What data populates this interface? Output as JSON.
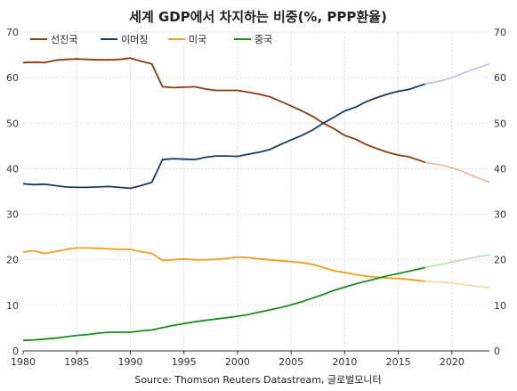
{
  "chart_data": {
    "type": "line",
    "title": "세계 GDP에서 차지하는 비중(%, PPP환율)",
    "source": "Source: Thomson Reuters Datastream, 글로벌모니터",
    "xlim": [
      1980,
      2023.5
    ],
    "ylim": [
      0,
      70
    ],
    "xticks": [
      1980,
      1985,
      1990,
      1995,
      2000,
      2005,
      2010,
      2015,
      2020
    ],
    "yticks": [
      0,
      10,
      20,
      30,
      40,
      50,
      60,
      70
    ],
    "grid": true,
    "legend_position": "top-left",
    "secondary_y_axis": true,
    "forecast_from": 2017.5,
    "series": [
      {
        "name": "선진국",
        "color": "#8b3a12",
        "forecast_color": "#e2b9a7",
        "points": [
          [
            1980,
            63.3
          ],
          [
            1981,
            63.4
          ],
          [
            1982,
            63.3
          ],
          [
            1983,
            63.8
          ],
          [
            1984,
            64.0
          ],
          [
            1985,
            64.1
          ],
          [
            1986,
            64.0
          ],
          [
            1987,
            63.9
          ],
          [
            1988,
            63.9
          ],
          [
            1989,
            64.0
          ],
          [
            1990,
            64.3
          ],
          [
            1991,
            63.6
          ],
          [
            1992,
            63.0
          ],
          [
            1993,
            58.0
          ],
          [
            1994,
            57.8
          ],
          [
            1995,
            57.9
          ],
          [
            1996,
            58.0
          ],
          [
            1997,
            57.5
          ],
          [
            1998,
            57.2
          ],
          [
            1999,
            57.2
          ],
          [
            2000,
            57.2
          ],
          [
            2001,
            56.8
          ],
          [
            2002,
            56.4
          ],
          [
            2003,
            55.8
          ],
          [
            2004,
            54.8
          ],
          [
            2005,
            53.8
          ],
          [
            2006,
            52.7
          ],
          [
            2007,
            51.5
          ],
          [
            2008,
            50.0
          ],
          [
            2009,
            48.8
          ],
          [
            2010,
            47.3
          ],
          [
            2011,
            46.5
          ],
          [
            2012,
            45.3
          ],
          [
            2013,
            44.4
          ],
          [
            2014,
            43.6
          ],
          [
            2015,
            43.0
          ],
          [
            2016,
            42.6
          ],
          [
            2017,
            41.8
          ],
          [
            2017.5,
            41.4
          ],
          [
            2019,
            40.8
          ],
          [
            2020,
            40.2
          ],
          [
            2021,
            39.4
          ],
          [
            2022,
            38.4
          ],
          [
            2023.5,
            37.0
          ]
        ]
      },
      {
        "name": "이머징",
        "color": "#1b3a5e",
        "forecast_color": "#b8c6d6",
        "points": [
          [
            1980,
            36.7
          ],
          [
            1981,
            36.5
          ],
          [
            1982,
            36.6
          ],
          [
            1983,
            36.3
          ],
          [
            1984,
            36.0
          ],
          [
            1985,
            35.9
          ],
          [
            1986,
            35.9
          ],
          [
            1987,
            36.0
          ],
          [
            1988,
            36.1
          ],
          [
            1989,
            35.9
          ],
          [
            1990,
            35.7
          ],
          [
            1991,
            36.3
          ],
          [
            1992,
            37.0
          ],
          [
            1993,
            42.0
          ],
          [
            1994,
            42.2
          ],
          [
            1995,
            42.1
          ],
          [
            1996,
            42.0
          ],
          [
            1997,
            42.5
          ],
          [
            1998,
            42.8
          ],
          [
            1999,
            42.8
          ],
          [
            2000,
            42.7
          ],
          [
            2001,
            43.2
          ],
          [
            2002,
            43.6
          ],
          [
            2003,
            44.2
          ],
          [
            2004,
            45.3
          ],
          [
            2005,
            46.3
          ],
          [
            2006,
            47.3
          ],
          [
            2007,
            48.5
          ],
          [
            2008,
            50.0
          ],
          [
            2009,
            51.3
          ],
          [
            2010,
            52.7
          ],
          [
            2011,
            53.5
          ],
          [
            2012,
            54.7
          ],
          [
            2013,
            55.6
          ],
          [
            2014,
            56.4
          ],
          [
            2015,
            57.0
          ],
          [
            2016,
            57.4
          ],
          [
            2017,
            58.2
          ],
          [
            2017.5,
            58.6
          ],
          [
            2019,
            59.3
          ],
          [
            2020,
            60.0
          ],
          [
            2021,
            60.9
          ],
          [
            2022,
            61.8
          ],
          [
            2023.5,
            63.0
          ]
        ]
      },
      {
        "name": "미국",
        "color": "#f0a01e",
        "forecast_color": "#f7d9a6",
        "points": [
          [
            1980,
            21.7
          ],
          [
            1981,
            22.0
          ],
          [
            1982,
            21.4
          ],
          [
            1983,
            21.8
          ],
          [
            1984,
            22.3
          ],
          [
            1985,
            22.6
          ],
          [
            1986,
            22.6
          ],
          [
            1987,
            22.5
          ],
          [
            1988,
            22.4
          ],
          [
            1989,
            22.3
          ],
          [
            1990,
            22.3
          ],
          [
            1991,
            21.8
          ],
          [
            1992,
            21.4
          ],
          [
            1993,
            19.9
          ],
          [
            1994,
            20.0
          ],
          [
            1995,
            20.2
          ],
          [
            1996,
            20.0
          ],
          [
            1997,
            20.0
          ],
          [
            1998,
            20.1
          ],
          [
            1999,
            20.3
          ],
          [
            2000,
            20.6
          ],
          [
            2001,
            20.5
          ],
          [
            2002,
            20.2
          ],
          [
            2003,
            20.0
          ],
          [
            2004,
            19.8
          ],
          [
            2005,
            19.6
          ],
          [
            2006,
            19.4
          ],
          [
            2007,
            19.0
          ],
          [
            2008,
            18.3
          ],
          [
            2009,
            17.6
          ],
          [
            2010,
            17.2
          ],
          [
            2011,
            16.8
          ],
          [
            2012,
            16.4
          ],
          [
            2013,
            16.2
          ],
          [
            2014,
            16.0
          ],
          [
            2015,
            15.9
          ],
          [
            2016,
            15.7
          ],
          [
            2017,
            15.4
          ],
          [
            2017.5,
            15.3
          ],
          [
            2019,
            15.1
          ],
          [
            2020,
            14.9
          ],
          [
            2021,
            14.6
          ],
          [
            2022,
            14.3
          ],
          [
            2023.5,
            13.9
          ]
        ]
      },
      {
        "name": "중국",
        "color": "#1e8c1e",
        "forecast_color": "#b9dcb9",
        "points": [
          [
            1980,
            2.3
          ],
          [
            1981,
            2.4
          ],
          [
            1982,
            2.6
          ],
          [
            1983,
            2.8
          ],
          [
            1984,
            3.1
          ],
          [
            1985,
            3.4
          ],
          [
            1986,
            3.6
          ],
          [
            1987,
            3.9
          ],
          [
            1988,
            4.1
          ],
          [
            1989,
            4.1
          ],
          [
            1990,
            4.1
          ],
          [
            1991,
            4.4
          ],
          [
            1992,
            4.6
          ],
          [
            1993,
            5.1
          ],
          [
            1994,
            5.6
          ],
          [
            1995,
            6.0
          ],
          [
            1996,
            6.4
          ],
          [
            1997,
            6.7
          ],
          [
            1998,
            7.0
          ],
          [
            1999,
            7.3
          ],
          [
            2000,
            7.6
          ],
          [
            2001,
            8.0
          ],
          [
            2002,
            8.5
          ],
          [
            2003,
            9.0
          ],
          [
            2004,
            9.5
          ],
          [
            2005,
            10.1
          ],
          [
            2006,
            10.8
          ],
          [
            2007,
            11.6
          ],
          [
            2008,
            12.4
          ],
          [
            2009,
            13.3
          ],
          [
            2010,
            14.0
          ],
          [
            2011,
            14.7
          ],
          [
            2012,
            15.3
          ],
          [
            2013,
            15.9
          ],
          [
            2014,
            16.5
          ],
          [
            2015,
            17.0
          ],
          [
            2016,
            17.5
          ],
          [
            2017,
            18.0
          ],
          [
            2017.5,
            18.3
          ],
          [
            2019,
            19.0
          ],
          [
            2020,
            19.5
          ],
          [
            2021,
            20.0
          ],
          [
            2022,
            20.5
          ],
          [
            2023.5,
            21.1
          ]
        ]
      }
    ]
  }
}
